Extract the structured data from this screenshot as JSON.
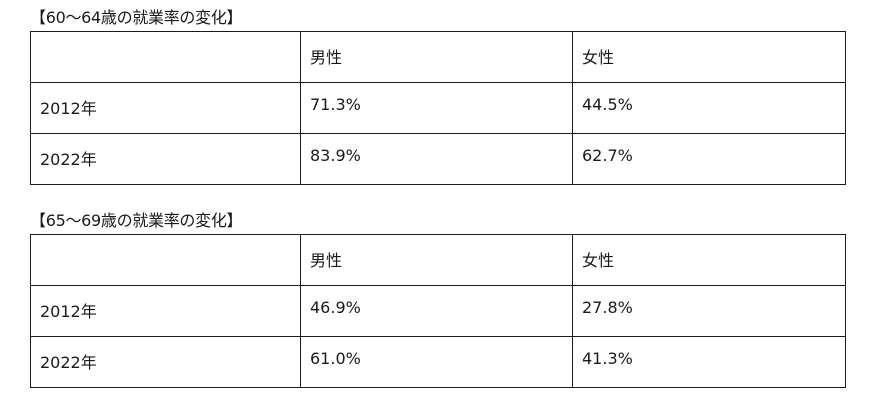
{
  "tables": [
    {
      "title": "【60～64歳の就業率の変化】",
      "header": [
        "",
        "男性",
        "女性"
      ],
      "rows": [
        {
          "year": "2012年",
          "male": "71.3%",
          "female": "44.5%"
        },
        {
          "year": "2022年",
          "male": "83.9%",
          "female": "62.7%"
        }
      ]
    },
    {
      "title": "【65～69歳の就業率の変化】",
      "header": [
        "",
        "男性",
        "女性"
      ],
      "rows": [
        {
          "year": "2012年",
          "male": "46.9%",
          "female": "27.8%"
        },
        {
          "year": "2022年",
          "male": "61.0%",
          "female": "41.3%"
        }
      ]
    }
  ],
  "colors": {
    "text": "#1a1a1a",
    "border": "#1a1a1a",
    "background": "#ffffff"
  }
}
